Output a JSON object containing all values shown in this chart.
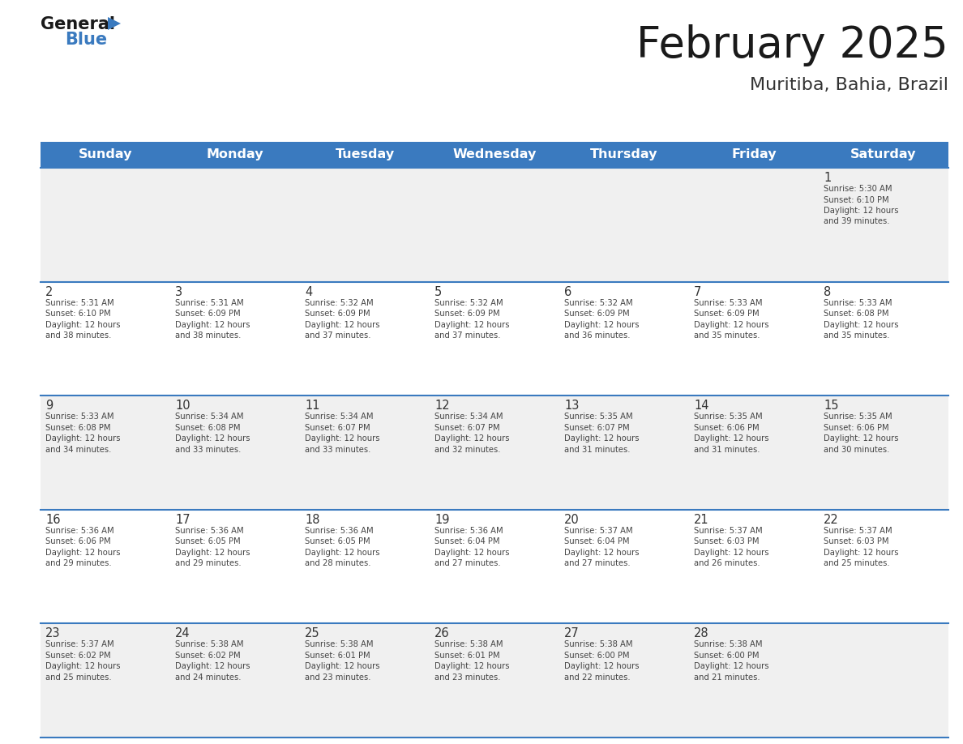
{
  "title": "February 2025",
  "subtitle": "Muritiba, Bahia, Brazil",
  "days_of_week": [
    "Sunday",
    "Monday",
    "Tuesday",
    "Wednesday",
    "Thursday",
    "Friday",
    "Saturday"
  ],
  "header_bg": "#3a7abf",
  "header_text": "#ffffff",
  "cell_bg_odd": "#f0f0f0",
  "cell_bg_even": "#ffffff",
  "cell_border_color": "#3a7abf",
  "day_num_color": "#333333",
  "day_text_color": "#444444",
  "title_color": "#1a1a1a",
  "subtitle_color": "#333333",
  "logo_general_color": "#1a1a1a",
  "logo_blue_color": "#3a7abf",
  "calendar": [
    [
      null,
      null,
      null,
      null,
      null,
      null,
      {
        "day": 1,
        "sunrise": "5:30 AM",
        "sunset": "6:10 PM",
        "daylight": "12 hours and 39 minutes."
      }
    ],
    [
      {
        "day": 2,
        "sunrise": "5:31 AM",
        "sunset": "6:10 PM",
        "daylight": "12 hours and 38 minutes."
      },
      {
        "day": 3,
        "sunrise": "5:31 AM",
        "sunset": "6:09 PM",
        "daylight": "12 hours and 38 minutes."
      },
      {
        "day": 4,
        "sunrise": "5:32 AM",
        "sunset": "6:09 PM",
        "daylight": "12 hours and 37 minutes."
      },
      {
        "day": 5,
        "sunrise": "5:32 AM",
        "sunset": "6:09 PM",
        "daylight": "12 hours and 37 minutes."
      },
      {
        "day": 6,
        "sunrise": "5:32 AM",
        "sunset": "6:09 PM",
        "daylight": "12 hours and 36 minutes."
      },
      {
        "day": 7,
        "sunrise": "5:33 AM",
        "sunset": "6:09 PM",
        "daylight": "12 hours and 35 minutes."
      },
      {
        "day": 8,
        "sunrise": "5:33 AM",
        "sunset": "6:08 PM",
        "daylight": "12 hours and 35 minutes."
      }
    ],
    [
      {
        "day": 9,
        "sunrise": "5:33 AM",
        "sunset": "6:08 PM",
        "daylight": "12 hours and 34 minutes."
      },
      {
        "day": 10,
        "sunrise": "5:34 AM",
        "sunset": "6:08 PM",
        "daylight": "12 hours and 33 minutes."
      },
      {
        "day": 11,
        "sunrise": "5:34 AM",
        "sunset": "6:07 PM",
        "daylight": "12 hours and 33 minutes."
      },
      {
        "day": 12,
        "sunrise": "5:34 AM",
        "sunset": "6:07 PM",
        "daylight": "12 hours and 32 minutes."
      },
      {
        "day": 13,
        "sunrise": "5:35 AM",
        "sunset": "6:07 PM",
        "daylight": "12 hours and 31 minutes."
      },
      {
        "day": 14,
        "sunrise": "5:35 AM",
        "sunset": "6:06 PM",
        "daylight": "12 hours and 31 minutes."
      },
      {
        "day": 15,
        "sunrise": "5:35 AM",
        "sunset": "6:06 PM",
        "daylight": "12 hours and 30 minutes."
      }
    ],
    [
      {
        "day": 16,
        "sunrise": "5:36 AM",
        "sunset": "6:06 PM",
        "daylight": "12 hours and 29 minutes."
      },
      {
        "day": 17,
        "sunrise": "5:36 AM",
        "sunset": "6:05 PM",
        "daylight": "12 hours and 29 minutes."
      },
      {
        "day": 18,
        "sunrise": "5:36 AM",
        "sunset": "6:05 PM",
        "daylight": "12 hours and 28 minutes."
      },
      {
        "day": 19,
        "sunrise": "5:36 AM",
        "sunset": "6:04 PM",
        "daylight": "12 hours and 27 minutes."
      },
      {
        "day": 20,
        "sunrise": "5:37 AM",
        "sunset": "6:04 PM",
        "daylight": "12 hours and 27 minutes."
      },
      {
        "day": 21,
        "sunrise": "5:37 AM",
        "sunset": "6:03 PM",
        "daylight": "12 hours and 26 minutes."
      },
      {
        "day": 22,
        "sunrise": "5:37 AM",
        "sunset": "6:03 PM",
        "daylight": "12 hours and 25 minutes."
      }
    ],
    [
      {
        "day": 23,
        "sunrise": "5:37 AM",
        "sunset": "6:02 PM",
        "daylight": "12 hours and 25 minutes."
      },
      {
        "day": 24,
        "sunrise": "5:38 AM",
        "sunset": "6:02 PM",
        "daylight": "12 hours and 24 minutes."
      },
      {
        "day": 25,
        "sunrise": "5:38 AM",
        "sunset": "6:01 PM",
        "daylight": "12 hours and 23 minutes."
      },
      {
        "day": 26,
        "sunrise": "5:38 AM",
        "sunset": "6:01 PM",
        "daylight": "12 hours and 23 minutes."
      },
      {
        "day": 27,
        "sunrise": "5:38 AM",
        "sunset": "6:00 PM",
        "daylight": "12 hours and 22 minutes."
      },
      {
        "day": 28,
        "sunrise": "5:38 AM",
        "sunset": "6:00 PM",
        "daylight": "12 hours and 21 minutes."
      },
      null
    ]
  ]
}
